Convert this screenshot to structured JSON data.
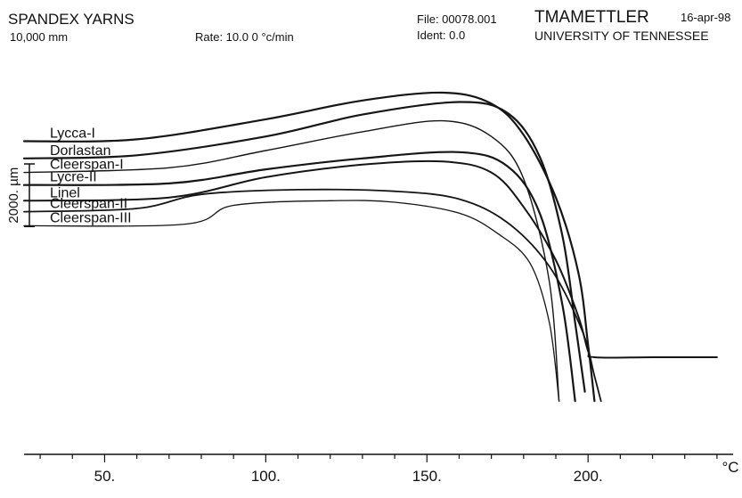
{
  "header": {
    "title": "SPANDEX YARNS",
    "size": "10,000 mm",
    "rate": "Rate: 10.0 0 °c/min",
    "file": "File: 00078.001",
    "ident": "Ident:  0.0",
    "instrument": "TMAMETTLER",
    "date": "16-apr-98",
    "institution": "UNIVERSITY OF TENNESSEE"
  },
  "chart_data": {
    "type": "line",
    "title": "SPANDEX YARNS",
    "xlabel": "°C",
    "ylabel": "µm",
    "scale_bar": {
      "label": "2000.  µm",
      "length": 2000
    },
    "xlim": [
      25,
      245
    ],
    "ylim": [
      -10000,
      3000
    ],
    "xticks": [
      50,
      100,
      150,
      200
    ],
    "xtick_labels": [
      "50.",
      "100.",
      "150.",
      "200."
    ],
    "grid": false,
    "legend": "labels on lines at left",
    "series": [
      {
        "name": "Lycca-I",
        "x": [
          25,
          60,
          100,
          130,
          155,
          170,
          180,
          190,
          197,
          200,
          202
        ],
        "y": [
          0,
          60,
          700,
          1300,
          1550,
          1200,
          200,
          -1800,
          -4200,
          -6500,
          -8300
        ]
      },
      {
        "name": "Dorlastan",
        "x": [
          25,
          60,
          100,
          130,
          160,
          175,
          185,
          192,
          196,
          199
        ],
        "y": [
          -550,
          -450,
          150,
          850,
          1250,
          900,
          -500,
          -3000,
          -5800,
          -8000
        ]
      },
      {
        "name": "Cleerspan-I",
        "x": [
          25,
          70,
          100,
          130,
          155,
          170,
          180,
          188,
          191
        ],
        "y": [
          -1000,
          -850,
          -300,
          300,
          650,
          150,
          -1200,
          -4500,
          -8300
        ]
      },
      {
        "name": "Lycre-II",
        "x": [
          25,
          70,
          100,
          130,
          160,
          175,
          185,
          192,
          196
        ],
        "y": [
          -1400,
          -1350,
          -900,
          -550,
          -350,
          -800,
          -2300,
          -5200,
          -8300
        ]
      },
      {
        "name": "Linel",
        "x": [
          25,
          70,
          100,
          130,
          155,
          170,
          180,
          190,
          197,
          200,
          202,
          220,
          240
        ],
        "y": [
          -1900,
          -1800,
          -1150,
          -750,
          -650,
          -1000,
          -2100,
          -3800,
          -5600,
          -6700,
          -6900,
          -6900,
          -6900
        ]
      },
      {
        "name": "Cleerspan-II",
        "x": [
          25,
          60,
          80,
          110,
          140,
          160,
          175,
          188,
          198,
          202,
          204
        ],
        "y": [
          -2250,
          -2150,
          -1700,
          -1550,
          -1600,
          -1850,
          -2600,
          -4000,
          -6000,
          -7500,
          -8300
        ]
      },
      {
        "name": "Cleerspan-III",
        "x": [
          25,
          75,
          90,
          120,
          140,
          160,
          172,
          182,
          188,
          191
        ],
        "y": [
          -2700,
          -2650,
          -2050,
          -1900,
          -1950,
          -2300,
          -2950,
          -3900,
          -5800,
          -8300
        ]
      }
    ]
  }
}
